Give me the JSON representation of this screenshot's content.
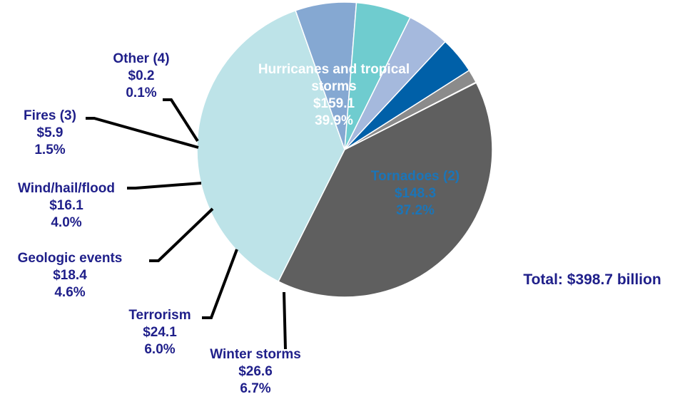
{
  "chart_data": {
    "type": "pie",
    "unit": "billion",
    "total_label": "Total: $398.7 billion",
    "slices": [
      {
        "lines": [
          "Hurricanes and tropical",
          "storms"
        ],
        "value_label": "$159.1",
        "percent_label": "39.9%",
        "value": 159.1,
        "percent": 39.9,
        "color": "#5f5f5f"
      },
      {
        "lines": [
          "Tornadoes (2)"
        ],
        "value_label": "$148.3",
        "percent_label": "37.2%",
        "value": 148.3,
        "percent": 37.2,
        "color": "#bde3e8"
      },
      {
        "lines": [
          "Winter storms"
        ],
        "value_label": "$26.6",
        "percent_label": "6.7%",
        "value": 26.6,
        "percent": 6.7,
        "color": "#85a8d2"
      },
      {
        "lines": [
          "Terrorism"
        ],
        "value_label": "$24.1",
        "percent_label": "6.0%",
        "value": 24.1,
        "percent": 6.0,
        "color": "#6fcccf"
      },
      {
        "lines": [
          "Geologic events"
        ],
        "value_label": "$18.4",
        "percent_label": "4.6%",
        "value": 18.4,
        "percent": 4.6,
        "color": "#a5b9dd"
      },
      {
        "lines": [
          "Wind/hail/flood"
        ],
        "value_label": "$16.1",
        "percent_label": "4.0%",
        "value": 16.1,
        "percent": 4.0,
        "color": "#0060a8"
      },
      {
        "lines": [
          "Fires (3)"
        ],
        "value_label": "$5.9",
        "percent_label": "1.5%",
        "value": 5.9,
        "percent": 1.5,
        "color": "#8b8b8b"
      },
      {
        "lines": [
          "Other (4)"
        ],
        "value_label": "$0.2",
        "percent_label": "0.1%",
        "value": 0.2,
        "percent": 0.1,
        "color": "#4b4b4b"
      }
    ]
  }
}
